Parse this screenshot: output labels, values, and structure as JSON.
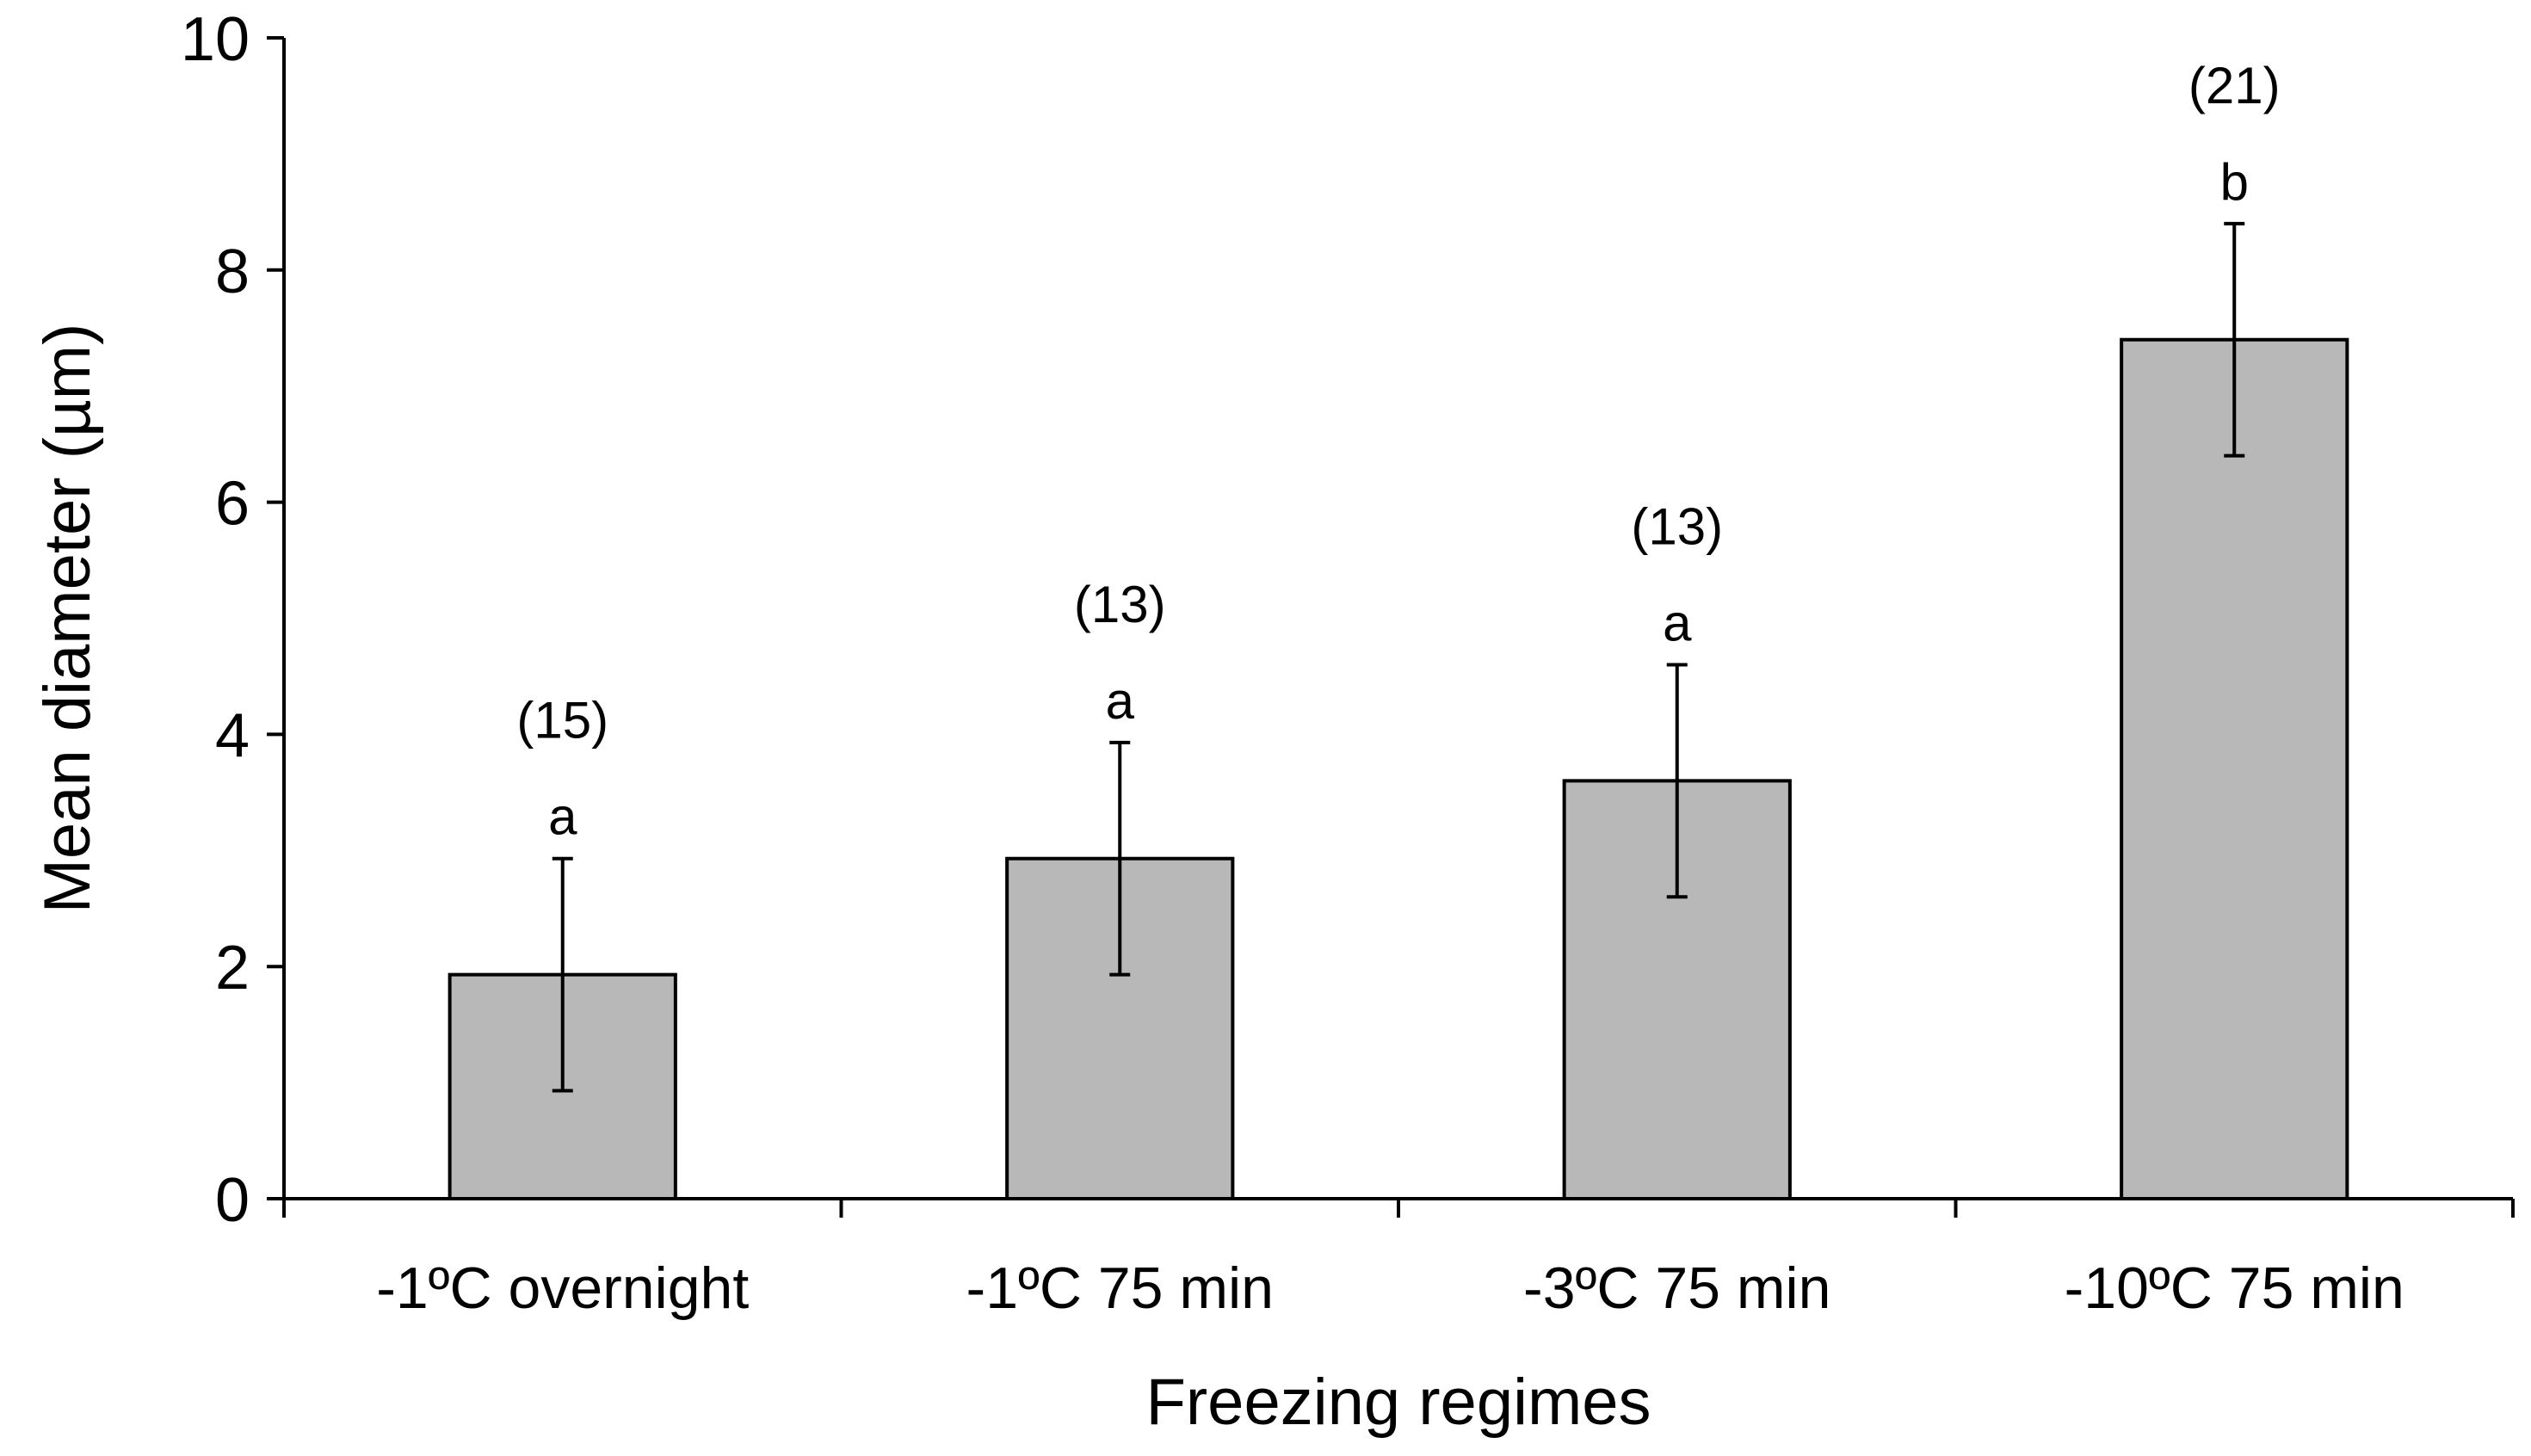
{
  "chart_data": {
    "type": "bar",
    "title": "",
    "xlabel": "Freezing regimes",
    "ylabel": "Mean diameter (µm)",
    "ylim": [
      0,
      10
    ],
    "yticks": [
      "0",
      "2",
      "4",
      "6",
      "8",
      "10"
    ],
    "categories": [
      "-1ºC overnight",
      "-1ºC 75 min",
      "-3ºC 75 min",
      "-10ºC 75 min"
    ],
    "values": [
      1.93,
      2.93,
      3.6,
      7.4
    ],
    "error_bars": [
      1.0,
      1.0,
      1.0,
      1.0
    ],
    "group_letters": [
      "a",
      "a",
      "a",
      "b"
    ],
    "sample_sizes": [
      "(15)",
      "(13)",
      "(13)",
      "(21)"
    ],
    "bar_color": "#b8b8b8",
    "grid": false,
    "legend": "none"
  }
}
